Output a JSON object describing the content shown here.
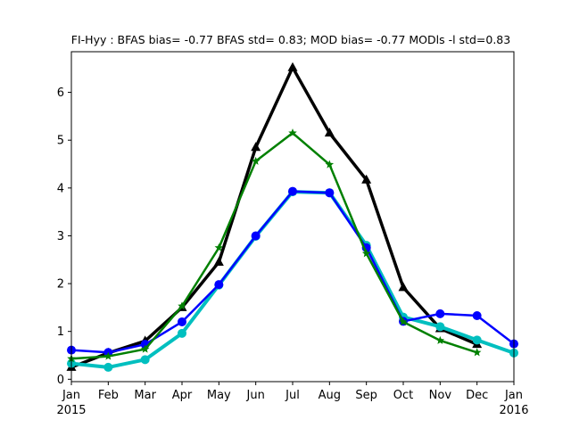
{
  "chart_data": {
    "type": "line",
    "title": "FI-Hyy   : BFAS bias= -0.77 BFAS std= 0.83; MOD bias= -0.77 MODls -l std=0.83",
    "xlabel": "",
    "ylabel": "",
    "x_ticks": [
      {
        "month": 0,
        "label": "Jan",
        "sublabel": "2015"
      },
      {
        "month": 1,
        "label": "Feb"
      },
      {
        "month": 2,
        "label": "Mar"
      },
      {
        "month": 3,
        "label": "Apr"
      },
      {
        "month": 4,
        "label": "May"
      },
      {
        "month": 5,
        "label": "Jun"
      },
      {
        "month": 6,
        "label": "Jul"
      },
      {
        "month": 7,
        "label": "Aug"
      },
      {
        "month": 8,
        "label": "Sep"
      },
      {
        "month": 9,
        "label": "Oct"
      },
      {
        "month": 10,
        "label": "Nov"
      },
      {
        "month": 11,
        "label": "Dec"
      },
      {
        "month": 12,
        "label": "Jan",
        "sublabel": "2016"
      }
    ],
    "y_ticks": [
      "0",
      "1",
      "2",
      "3",
      "4",
      "5",
      "6"
    ],
    "xlim": [
      0,
      12
    ],
    "ylim": [
      -0.05,
      6.85
    ],
    "grid": false,
    "legend": "none",
    "series": [
      {
        "color": "#000000",
        "marker": "triangle",
        "line_width": 3.5,
        "x": [
          0,
          1,
          2,
          3,
          4,
          5,
          6,
          7,
          8,
          9,
          10,
          11
        ],
        "y": [
          0.25,
          0.55,
          0.8,
          1.5,
          2.45,
          4.85,
          6.52,
          5.15,
          4.17,
          1.92,
          1.06,
          0.73
        ]
      },
      {
        "color": "#00bfbf",
        "marker": "circle",
        "line_width": 4,
        "x": [
          0,
          1,
          2,
          3,
          4,
          5,
          6,
          7,
          8,
          9,
          10,
          11,
          12
        ],
        "y": [
          0.33,
          0.25,
          0.41,
          0.96,
          1.97,
          2.99,
          3.92,
          3.9,
          2.8,
          1.3,
          1.1,
          0.82,
          0.55
        ]
      },
      {
        "color": "#0000ff",
        "marker": "circle",
        "line_width": 2.5,
        "x": [
          0,
          1,
          2,
          3,
          4,
          5,
          6,
          7,
          8,
          9,
          10,
          11,
          12
        ],
        "y": [
          0.61,
          0.56,
          0.73,
          1.2,
          1.98,
          3.0,
          3.93,
          3.9,
          2.75,
          1.21,
          1.37,
          1.33,
          0.74
        ]
      },
      {
        "color": "#008000",
        "marker": "star",
        "line_width": 2.5,
        "x": [
          0,
          1,
          2,
          3,
          4,
          5,
          6,
          7,
          8,
          9,
          10,
          11
        ],
        "y": [
          0.43,
          0.48,
          0.63,
          1.53,
          2.75,
          4.56,
          5.15,
          4.49,
          2.63,
          1.2,
          0.81,
          0.56
        ]
      }
    ]
  }
}
